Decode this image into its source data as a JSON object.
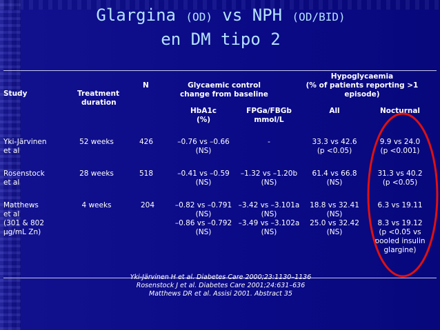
{
  "title": {
    "line1_a": "Glargina ",
    "line1_b": "(OD)",
    "line1_c": " vs NPH ",
    "line1_d": "(OD/BID)",
    "line2": "en DM tipo 2"
  },
  "headers": {
    "study": "Study",
    "treatment_line1": "Treatment",
    "treatment_line2": "duration",
    "n": "N",
    "glycaemic_line1": "Glycaemic control",
    "glycaemic_line2": "change from baseline",
    "hypo_line1": "Hypoglycaemia",
    "hypo_line2": "(% of patients reporting >1",
    "hypo_line3": "episode)",
    "hba1c_line1": "HbA1c",
    "hba1c_line2": "(%)",
    "fpg_line1": "FPGa/FBGb",
    "fpg_line2": "mmol/L",
    "all": "All",
    "nocturnal": "Nocturnal"
  },
  "rows": [
    {
      "study_line1": "Yki-Järvinen",
      "study_line2": "et al",
      "duration": "52 weeks",
      "n": "426",
      "hba1c_line1": "–0.76 vs –0.66",
      "hba1c_line2": "(NS)",
      "fpg_line1": "-",
      "all_line1": "33.3 vs 42.6",
      "all_line2": "(p <0.05)",
      "noct_line1": "9.9 vs 24.0",
      "noct_line2": "(p <0.001)"
    },
    {
      "study_line1": "Rosenstock",
      "study_line2": "et al",
      "duration": "28 weeks",
      "n": "518",
      "hba1c_line1": "–0.41 vs –0.59",
      "hba1c_line2": "(NS)",
      "fpg_line1": "–1.32 vs –1.20b",
      "fpg_line2": "(NS)",
      "all_line1": "61.4 vs 66.8",
      "all_line2": "(NS)",
      "noct_line1": "31.3 vs 40.2",
      "noct_line2": "(p <0.05)"
    },
    {
      "study_line1": "Matthews",
      "study_line2": "et al",
      "study_line3": "(301 & 802",
      "study_line4": "µg/mL Zn)",
      "duration": "4 weeks",
      "n": "204",
      "hba1c_line1": "–0.82 vs –0.791",
      "hba1c_line2": "(NS)",
      "hba1c_line3": "–0.86 vs –0.792",
      "hba1c_line4": "(NS)",
      "fpg_line1": "–3.42 vs –3.101a",
      "fpg_line2": "(NS)",
      "fpg_line3": "–3.49 vs –3.102a",
      "fpg_line4": "(NS)",
      "all_line1": "18.8 vs 32.41",
      "all_line2": "(NS)",
      "all_line3": "25.0 vs 32.42",
      "all_line4": "(NS)",
      "noct_line1": "6.3 vs 19.11",
      "noct_line3": "8.3 vs 19.12",
      "noct_line4": "(p <0.05 vs",
      "noct_line5": "pooled insulin",
      "noct_line6": "glargine)"
    }
  ],
  "references": [
    "Yki-Järvinen H et al. Diabetes Care 2000;23:1130–1136",
    "Rosenstock J et al. Diabetes Care 2001;24:631–636",
    "Matthews DR et al. Assisi 2001. Abstract 35"
  ],
  "colors": {
    "background": "#0b0b8a",
    "title": "#b6e2ff",
    "text": "#ffffff",
    "highlight": "#e01010"
  }
}
